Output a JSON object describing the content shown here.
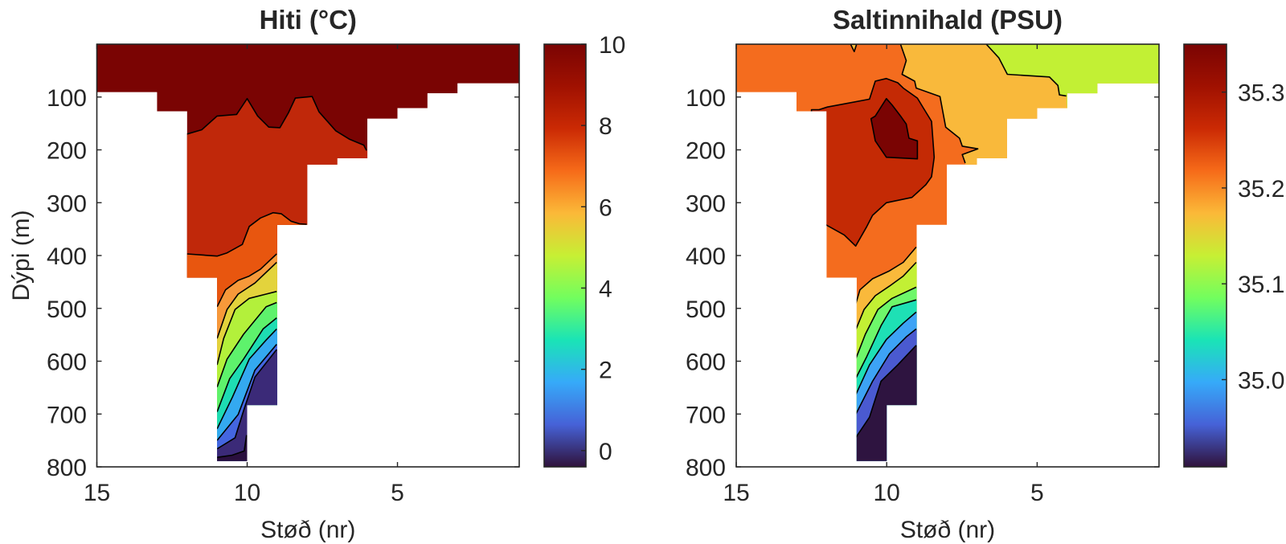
{
  "chart_data": [
    {
      "id": "temperature",
      "type": "heatmap",
      "title": "Hiti (°C)",
      "xlabel": "Støð (nr)",
      "ylabel": "Dýpi (m)",
      "xlim": [
        0.95,
        15
      ],
      "x_reversed": true,
      "ylim": [
        0,
        800
      ],
      "y_reversed": true,
      "xticks": [
        15,
        10,
        5
      ],
      "xtick_labels": [
        "15",
        "10",
        "5"
      ],
      "yticks": [
        100,
        200,
        300,
        400,
        500,
        600,
        700,
        800
      ],
      "ytick_labels": [
        "100",
        "200",
        "300",
        "400",
        "500",
        "600",
        "700",
        "800"
      ],
      "base_color": "#7a0403",
      "bathymetry": [
        {
          "from": 15,
          "to": 13,
          "depth": 91
        },
        {
          "from": 13,
          "to": 12,
          "depth": 127
        },
        {
          "from": 12,
          "to": 11,
          "depth": 442
        },
        {
          "from": 11,
          "to": 10,
          "depth": 789
        },
        {
          "from": 10,
          "to": 9,
          "depth": 683
        },
        {
          "from": 9,
          "to": 8,
          "depth": 342
        },
        {
          "from": 8,
          "to": 7,
          "depth": 228
        },
        {
          "from": 7,
          "to": 6,
          "depth": 216
        },
        {
          "from": 6,
          "to": 5,
          "depth": 141
        },
        {
          "from": 5,
          "to": 4,
          "depth": 121
        },
        {
          "from": 4,
          "to": 3,
          "depth": 93
        },
        {
          "from": 3,
          "to": 0.95,
          "depth": 74
        }
      ],
      "contours": [
        {
          "level": 9,
          "color": "#c0280a",
          "fill": "below",
          "line": [
            [
              12.0,
              170
            ],
            [
              11.51,
              162
            ],
            [
              11.0,
              136
            ],
            [
              10.35,
              133
            ],
            [
              10.0,
              103
            ],
            [
              9.65,
              136
            ],
            [
              9.28,
              157
            ],
            [
              8.91,
              158
            ],
            [
              8.63,
              130
            ],
            [
              8.4,
              102
            ],
            [
              7.84,
              99
            ],
            [
              7.61,
              128
            ],
            [
              7.05,
              164
            ],
            [
              6.59,
              180
            ],
            [
              6.12,
              191
            ],
            [
              6.03,
              201
            ]
          ]
        },
        {
          "level": 8,
          "color": "#e8560f",
          "fill": "below",
          "line": [
            [
              12.0,
              397
            ],
            [
              11.0,
              401
            ],
            [
              10.67,
              395
            ],
            [
              10.16,
              379
            ],
            [
              9.93,
              345
            ],
            [
              9.56,
              329
            ],
            [
              9.14,
              319
            ],
            [
              8.86,
              321
            ],
            [
              8.54,
              335
            ],
            [
              8.26,
              340
            ],
            [
              8.02,
              341
            ]
          ]
        },
        {
          "level": 7,
          "color": "#f7993a",
          "fill": "below",
          "line": [
            [
              11.0,
              497
            ],
            [
              10.72,
              465
            ],
            [
              10.3,
              447
            ],
            [
              9.93,
              439
            ],
            [
              9.56,
              426
            ],
            [
              9.02,
              397
            ]
          ]
        },
        {
          "level": 6,
          "color": "#e3d33c",
          "fill": "below",
          "line": [
            [
              11.0,
              557
            ],
            [
              10.67,
              502
            ],
            [
              10.3,
              473
            ],
            [
              9.74,
              452
            ],
            [
              9.02,
              413
            ]
          ]
        },
        {
          "level": 5,
          "color": "#b3f03b",
          "fill": "below",
          "line": [
            [
              11.0,
              607
            ],
            [
              10.78,
              557
            ],
            [
              10.4,
              502
            ],
            [
              9.93,
              481
            ],
            [
              9.37,
              473
            ],
            [
              9.02,
              468
            ]
          ]
        },
        {
          "level": 4,
          "color": "#5ef26c",
          "fill": "below",
          "line": [
            [
              11.0,
              649
            ],
            [
              10.67,
              596
            ],
            [
              10.12,
              549
            ],
            [
              9.37,
              497
            ],
            [
              9.02,
              489
            ]
          ]
        },
        {
          "level": 3,
          "color": "#1edcb3",
          "fill": "below",
          "line": [
            [
              11.0,
              696
            ],
            [
              10.58,
              633
            ],
            [
              10.12,
              596
            ],
            [
              9.47,
              539
            ],
            [
              9.02,
              518
            ]
          ]
        },
        {
          "level": 2,
          "color": "#34a9f0",
          "fill": "below",
          "line": [
            [
              11.0,
              728
            ],
            [
              10.49,
              668
            ],
            [
              9.93,
              596
            ],
            [
              9.37,
              560
            ],
            [
              9.02,
              539
            ]
          ]
        },
        {
          "level": 1,
          "color": "#4466e0",
          "fill": "below",
          "line": [
            [
              11.0,
              750
            ],
            [
              10.3,
              701
            ],
            [
              9.74,
              617
            ],
            [
              9.02,
              568
            ]
          ]
        },
        {
          "level": 0,
          "color": "#3b2a78",
          "fill": "below",
          "line": [
            [
              11.0,
              766
            ],
            [
              10.4,
              745
            ],
            [
              10.1,
              690
            ],
            [
              9.74,
              630
            ],
            [
              9.02,
              578
            ]
          ]
        },
        {
          "level": -0.25,
          "color": "#2a0f3e",
          "fill": "below",
          "line": [
            [
              11.0,
              782
            ],
            [
              10.5,
              778
            ],
            [
              10.1,
              770
            ],
            [
              10.02,
              740
            ]
          ]
        }
      ],
      "colorbar": {
        "clim": [
          -0.4,
          10
        ],
        "ticks": [
          10,
          8,
          6,
          4,
          2,
          0
        ],
        "tick_labels": [
          "10",
          "8",
          "6",
          "4",
          "2",
          "0"
        ],
        "colormap": [
          "#30123b",
          "#4662d7",
          "#36aaf9",
          "#1ae4b6",
          "#72fe5e",
          "#c7ef34",
          "#fbb938",
          "#f66b19",
          "#cb2a04",
          "#a01101",
          "#7a0403"
        ]
      }
    },
    {
      "id": "salinity",
      "type": "heatmap",
      "title": "Saltinnihald (PSU)",
      "xlabel": "Støð (nr)",
      "ylabel": "",
      "xlim": [
        0.95,
        15
      ],
      "x_reversed": true,
      "ylim": [
        0,
        800
      ],
      "y_reversed": true,
      "xticks": [
        15,
        10,
        5
      ],
      "xtick_labels": [
        "15",
        "10",
        "5"
      ],
      "yticks": [
        100,
        200,
        300,
        400,
        500,
        600,
        700,
        800
      ],
      "ytick_labels": [
        "100",
        "200",
        "300",
        "400",
        "500",
        "600",
        "700",
        "800"
      ],
      "base_color": "#f46c1e",
      "bathymetry": [
        {
          "from": 15,
          "to": 13,
          "depth": 91
        },
        {
          "from": 13,
          "to": 12,
          "depth": 127
        },
        {
          "from": 12,
          "to": 11,
          "depth": 442
        },
        {
          "from": 11,
          "to": 10,
          "depth": 789
        },
        {
          "from": 10,
          "to": 9,
          "depth": 683
        },
        {
          "from": 9,
          "to": 8,
          "depth": 342
        },
        {
          "from": 8,
          "to": 7,
          "depth": 228
        },
        {
          "from": 7,
          "to": 6,
          "depth": 216
        },
        {
          "from": 6,
          "to": 5,
          "depth": 141
        },
        {
          "from": 5,
          "to": 4,
          "depth": 121
        },
        {
          "from": 4,
          "to": 3,
          "depth": 93
        },
        {
          "from": 3,
          "to": 0.95,
          "depth": 74
        }
      ],
      "contours": [
        {
          "level": 35.25,
          "color": "#f9b93b",
          "fill": "custom",
          "line": [
            [
              9.54,
              0
            ],
            [
              9.35,
              31
            ],
            [
              9.49,
              57
            ],
            [
              9.07,
              70
            ],
            [
              9.02,
              83
            ],
            [
              8.23,
              99
            ],
            [
              8.04,
              157
            ],
            [
              7.58,
              178
            ],
            [
              7.49,
              193
            ],
            [
              6.97,
              198
            ],
            [
              7.49,
              209
            ],
            [
              7.39,
              225
            ]
          ],
          "close": [
            [
              7.3,
              260
            ],
            [
              0.9,
              260
            ],
            [
              0.9,
              0
            ]
          ]
        },
        {
          "level": 35.2,
          "color": "#c2f034",
          "fill": "custom",
          "line": [
            [
              6.69,
              0
            ],
            [
              6.27,
              26
            ],
            [
              5.99,
              57
            ],
            [
              4.59,
              62
            ],
            [
              4.31,
              78
            ],
            [
              4.26,
              96
            ],
            [
              4.03,
              98
            ]
          ],
          "close": [
            [
              4.0,
              130
            ],
            [
              0.9,
              130
            ],
            [
              0.9,
              0
            ]
          ]
        },
        {
          "level": 35.25,
          "color": "#f9b93b",
          "fill": "closed",
          "line": [
            [
              11.2,
              0
            ],
            [
              11.0,
              0
            ],
            [
              11.08,
              14
            ]
          ]
        },
        {
          "level": 35.3,
          "color": "#c42a05",
          "fill": "closed",
          "line": [
            [
              12.25,
              124
            ],
            [
              11.97,
              119
            ],
            [
              10.57,
              104
            ],
            [
              10.38,
              70
            ],
            [
              10.01,
              65
            ],
            [
              9.63,
              73
            ],
            [
              9.45,
              83
            ],
            [
              8.98,
              102
            ],
            [
              8.79,
              120
            ],
            [
              8.51,
              146
            ],
            [
              8.42,
              214
            ],
            [
              8.51,
              251
            ],
            [
              8.7,
              266
            ],
            [
              9.16,
              290
            ],
            [
              10.01,
              300
            ],
            [
              10.47,
              324
            ],
            [
              10.66,
              345
            ],
            [
              11.03,
              382
            ],
            [
              11.41,
              361
            ],
            [
              12.01,
              342
            ],
            [
              12.5,
              342
            ],
            [
              12.5,
              124
            ]
          ]
        },
        {
          "level": 35.33,
          "color": "#7a0403",
          "fill": "closed",
          "line": [
            [
              10.01,
              103
            ],
            [
              10.38,
              136
            ],
            [
              10.52,
              141
            ],
            [
              10.38,
              183
            ],
            [
              10.01,
              214
            ],
            [
              8.98,
              217
            ],
            [
              8.98,
              183
            ],
            [
              9.26,
              178
            ],
            [
              9.35,
              151
            ],
            [
              9.54,
              136
            ],
            [
              9.82,
              115
            ]
          ]
        },
        {
          "level": 35.25,
          "color": "#f9b93b",
          "fill": "below",
          "line": [
            [
              11.03,
              492
            ],
            [
              10.89,
              465
            ],
            [
              10.47,
              444
            ],
            [
              9.91,
              429
            ],
            [
              9.45,
              413
            ],
            [
              9.02,
              384
            ]
          ]
        },
        {
          "level": 35.2,
          "color": "#c2f034",
          "fill": "below",
          "line": [
            [
              11.03,
              541
            ],
            [
              10.75,
              502
            ],
            [
              10.38,
              476
            ],
            [
              9.91,
              458
            ],
            [
              9.45,
              439
            ],
            [
              9.02,
              413
            ]
          ]
        },
        {
          "level": 35.15,
          "color": "#6ef76a",
          "fill": "below",
          "line": [
            [
              11.03,
              596
            ],
            [
              10.71,
              549
            ],
            [
              10.29,
              502
            ],
            [
              9.82,
              481
            ],
            [
              9.02,
              460
            ]
          ]
        },
        {
          "level": 35.1,
          "color": "#1ee0b5",
          "fill": "below",
          "line": [
            [
              11.03,
              633
            ],
            [
              10.66,
              591
            ],
            [
              10.19,
              533
            ],
            [
              9.82,
              497
            ],
            [
              9.02,
              484
            ]
          ]
        },
        {
          "level": 35.05,
          "color": "#3da3f5",
          "fill": "below",
          "line": [
            [
              11.03,
              664
            ],
            [
              10.57,
              607
            ],
            [
              10.01,
              559
            ],
            [
              9.45,
              528
            ],
            [
              9.02,
              507
            ]
          ]
        },
        {
          "level": 35.0,
          "color": "#4a5ad0",
          "fill": "below",
          "line": [
            [
              11.03,
              701
            ],
            [
              10.47,
              638
            ],
            [
              9.91,
              586
            ],
            [
              9.35,
              554
            ],
            [
              9.02,
              539
            ]
          ]
        },
        {
          "level": 34.95,
          "color": "#2e1440",
          "fill": "below",
          "line": [
            [
              11.03,
              745
            ],
            [
              10.57,
              706
            ],
            [
              10.19,
              638
            ],
            [
              9.63,
              607
            ],
            [
              9.02,
              570
            ]
          ]
        }
      ],
      "colorbar": {
        "clim": [
          34.909,
          35.35
        ],
        "ticks": [
          35.3,
          35.2,
          35.1,
          35.0
        ],
        "tick_labels": [
          "35.3",
          "35.2",
          "35.1",
          "35.0"
        ],
        "colormap": [
          "#30123b",
          "#4662d7",
          "#36aaf9",
          "#1ae4b6",
          "#72fe5e",
          "#c7ef34",
          "#fbb938",
          "#f66b19",
          "#cb2a04",
          "#a01101",
          "#7a0403"
        ]
      }
    }
  ]
}
